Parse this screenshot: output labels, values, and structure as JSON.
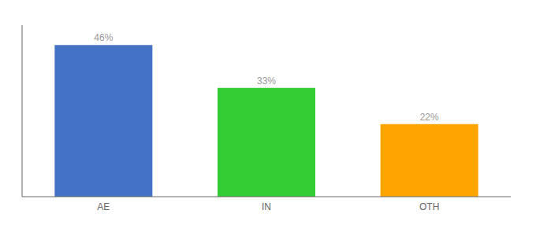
{
  "chart_data": {
    "type": "bar",
    "categories": [
      "AE",
      "IN",
      "OTH"
    ],
    "values": [
      46,
      33,
      22
    ],
    "value_labels": [
      "46%",
      "33%",
      "22%"
    ],
    "colors": [
      "#4472C4",
      "#33CC33",
      "#FFA500"
    ],
    "ylim": [
      0,
      52
    ],
    "data_labels": true,
    "tick_labels": "x",
    "grid": false
  }
}
